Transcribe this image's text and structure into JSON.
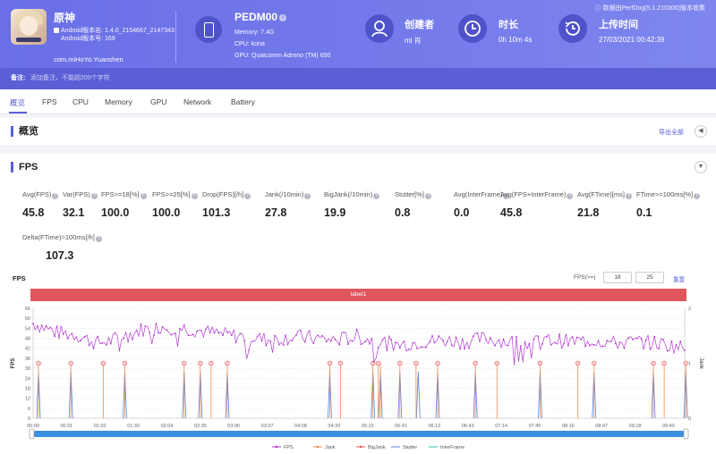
{
  "app": {
    "name": "原神",
    "version_line": "Android版本名: 1.4.0_2154667_2147343",
    "code_line": "Android版本号: 169",
    "package": "com.miHoYo.Yuanshen"
  },
  "device": {
    "name": "PEDM00",
    "info_mark": "i",
    "memory": "Memory: 7.4G",
    "cpu": "CPU: kona",
    "gpu": "GPU: Qualcomm Adreno (TM) 650"
  },
  "creator": {
    "label": "创建者",
    "value": "ml 肖"
  },
  "duration": {
    "label": "时长",
    "value": "0h 10m 4s"
  },
  "upload": {
    "label": "上传时间",
    "value": "27/03/2021 00:42:39"
  },
  "perfdog_note": "ⓘ 数据由PerfDog(5.1.210300)版本收集",
  "note": {
    "label": "备注:",
    "placeholder": "添加备注，不能超200个字符"
  },
  "tabs": [
    "概览",
    "FPS",
    "CPU",
    "Memory",
    "GPU",
    "Network",
    "Battery"
  ],
  "overview": {
    "title": "概览",
    "export": "导出全部",
    "toggle": "◀"
  },
  "fps_section": {
    "title": "FPS",
    "toggle": "▼",
    "metrics": [
      {
        "label": "Avg(FPS)",
        "value": "45.8"
      },
      {
        "label": "Var(FPS)",
        "value": "32.1"
      },
      {
        "label": "FPS>=18[%]",
        "value": "100.0"
      },
      {
        "label": "FPS>=25[%]",
        "value": "100.0"
      },
      {
        "label": "Drop(FPS)[/h]",
        "value": "101.3"
      },
      {
        "label": "Jank(/10min)",
        "value": "27.8"
      },
      {
        "label": "BigJank(/10min)",
        "value": "19.9"
      },
      {
        "label": "Stutter[%]",
        "value": "0.8"
      },
      {
        "label": "Avg(InterFrame)",
        "value": "0.0"
      },
      {
        "label": "Avg(FPS+InterFrame)",
        "value": "45.8"
      },
      {
        "label": "Avg(FTime)[ms]",
        "value": "21.8"
      },
      {
        "label": "FTime>=100ms[%]",
        "value": "0.1"
      },
      {
        "label": "Delta(FTime)>100ms[/h]",
        "value": "107.3"
      }
    ],
    "help_mark": "?"
  },
  "chart_controls": {
    "title": "FPS",
    "filter_label": "FPS(>=)",
    "filter_a": "18",
    "filter_b": "25",
    "reset": "重置",
    "label_bar": "label1"
  },
  "chart_data": {
    "type": "line",
    "ylabel_left": "FPS",
    "ylabel_right": "Jank",
    "y_ticks_left": [
      "66",
      "60",
      "54",
      "48",
      "42",
      "36",
      "30",
      "24",
      "18",
      "12",
      "6",
      "0"
    ],
    "y_ticks_right": [
      "2",
      "1",
      "0"
    ],
    "x_ticks": [
      "00:00",
      "00:31",
      "01:02",
      "01:33",
      "02:04",
      "02:35",
      "03:06",
      "03:37",
      "04:08",
      "04:39",
      "05:10",
      "05:41",
      "06:12",
      "06:43",
      "07:14",
      "07:45",
      "08:16",
      "08:47",
      "09:18",
      "09:49"
    ],
    "fps_anchors": [
      [
        0,
        57
      ],
      [
        20,
        52
      ],
      [
        40,
        50
      ],
      [
        60,
        45
      ],
      [
        80,
        48
      ],
      [
        100,
        53
      ],
      [
        120,
        55
      ],
      [
        140,
        54
      ],
      [
        160,
        52
      ],
      [
        180,
        50
      ],
      [
        200,
        49
      ],
      [
        220,
        47
      ],
      [
        240,
        49
      ],
      [
        260,
        48
      ],
      [
        280,
        47
      ],
      [
        300,
        49
      ],
      [
        320,
        46
      ],
      [
        340,
        44
      ],
      [
        360,
        46
      ],
      [
        380,
        47
      ],
      [
        400,
        46
      ],
      [
        420,
        48
      ],
      [
        440,
        46
      ],
      [
        460,
        45
      ],
      [
        480,
        47
      ],
      [
        500,
        46
      ],
      [
        520,
        47
      ],
      [
        540,
        45
      ],
      [
        560,
        46
      ],
      [
        580,
        45
      ],
      [
        604,
        42
      ]
    ],
    "jank_times_s": [
      5,
      35,
      65,
      85,
      140,
      155,
      165,
      180,
      275,
      285,
      315,
      320,
      322,
      340,
      355,
      375,
      410,
      430,
      470,
      505,
      520,
      575,
      585,
      605
    ],
    "bigjank_times_s": [
      5,
      35,
      65,
      85,
      140,
      155,
      165,
      180,
      275,
      285,
      315,
      320,
      340,
      355,
      375,
      410,
      430,
      470,
      505,
      520,
      575,
      585,
      605
    ],
    "stutter_times_s": [
      5,
      35,
      85,
      140,
      155,
      180,
      275,
      315,
      322,
      340,
      357,
      375,
      410,
      470,
      520,
      575,
      605
    ],
    "duration_s": 604,
    "legend": [
      "FPS",
      "Jank",
      "BigJank",
      "Stutter",
      "InterFrame"
    ],
    "colors": {
      "fps": "#b23bd0",
      "jank": "#f08a4b",
      "bigjank": "#e0575e",
      "stutter": "#5b7fd6",
      "interframe": "#2fbfb0"
    },
    "grid": true
  }
}
